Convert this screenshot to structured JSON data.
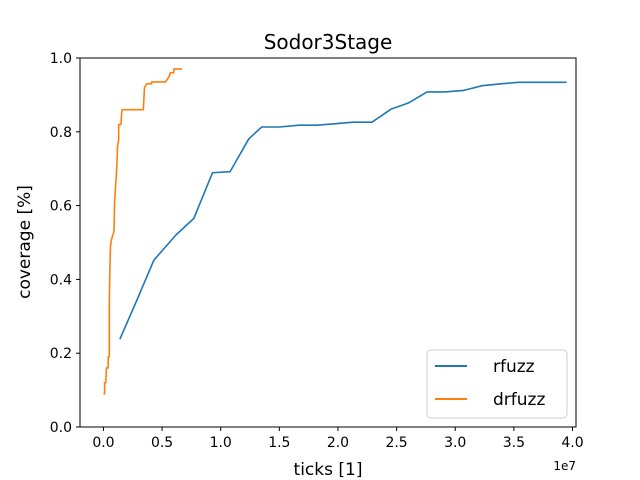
{
  "chart_data": {
    "type": "line",
    "title": "Sodor3Stage",
    "xlabel": "ticks [1]",
    "ylabel": "coverage [%]",
    "x_offset_label": "1e7",
    "xlim": [
      -2000000,
      40300000
    ],
    "ylim": [
      0.0,
      1.0
    ],
    "x_ticks": [
      0,
      5000000,
      10000000,
      15000000,
      20000000,
      25000000,
      30000000,
      35000000,
      40000000
    ],
    "x_tick_labels": [
      "0.0",
      "0.5",
      "1.0",
      "1.5",
      "2.0",
      "2.5",
      "3.0",
      "3.5",
      "4.0"
    ],
    "y_ticks": [
      0.0,
      0.2,
      0.4,
      0.6,
      0.8,
      1.0
    ],
    "y_tick_labels": [
      "0.0",
      "0.2",
      "0.4",
      "0.6",
      "0.8",
      "1.0"
    ],
    "grid": false,
    "legend_position": "lower-right",
    "series": [
      {
        "name": "rfuzz",
        "color": "#1f77b4",
        "points": [
          [
            1400000,
            0.238
          ],
          [
            2800000,
            0.34
          ],
          [
            4300000,
            0.452
          ],
          [
            6200000,
            0.521
          ],
          [
            7700000,
            0.565
          ],
          [
            9300000,
            0.689
          ],
          [
            10800000,
            0.692
          ],
          [
            12400000,
            0.781
          ],
          [
            13500000,
            0.813
          ],
          [
            15000000,
            0.813
          ],
          [
            16700000,
            0.818
          ],
          [
            18200000,
            0.818
          ],
          [
            19800000,
            0.822
          ],
          [
            21300000,
            0.826
          ],
          [
            22900000,
            0.826
          ],
          [
            24500000,
            0.861
          ],
          [
            26000000,
            0.878
          ],
          [
            27600000,
            0.908
          ],
          [
            29100000,
            0.908
          ],
          [
            30700000,
            0.912
          ],
          [
            32300000,
            0.925
          ],
          [
            33900000,
            0.93
          ],
          [
            35400000,
            0.934
          ],
          [
            37000000,
            0.934
          ],
          [
            39500000,
            0.934
          ]
        ]
      },
      {
        "name": "drfuzz",
        "color": "#ff7f0e",
        "points": [
          [
            0,
            0.09
          ],
          [
            100000,
            0.09
          ],
          [
            100000,
            0.12
          ],
          [
            200000,
            0.12
          ],
          [
            250000,
            0.16
          ],
          [
            400000,
            0.16
          ],
          [
            400000,
            0.19
          ],
          [
            500000,
            0.19
          ],
          [
            500000,
            0.34
          ],
          [
            550000,
            0.43
          ],
          [
            600000,
            0.49
          ],
          [
            700000,
            0.51
          ],
          [
            800000,
            0.52
          ],
          [
            900000,
            0.53
          ],
          [
            950000,
            0.61
          ],
          [
            1050000,
            0.66
          ],
          [
            1150000,
            0.71
          ],
          [
            1200000,
            0.76
          ],
          [
            1300000,
            0.78
          ],
          [
            1300000,
            0.82
          ],
          [
            1500000,
            0.82
          ],
          [
            1550000,
            0.85
          ],
          [
            1600000,
            0.86
          ],
          [
            3400000,
            0.86
          ],
          [
            3500000,
            0.92
          ],
          [
            3700000,
            0.93
          ],
          [
            4100000,
            0.93
          ],
          [
            4100000,
            0.935
          ],
          [
            5300000,
            0.935
          ],
          [
            5600000,
            0.95
          ],
          [
            5700000,
            0.96
          ],
          [
            6000000,
            0.96
          ],
          [
            6000000,
            0.97
          ],
          [
            6700000,
            0.97
          ]
        ]
      }
    ]
  }
}
